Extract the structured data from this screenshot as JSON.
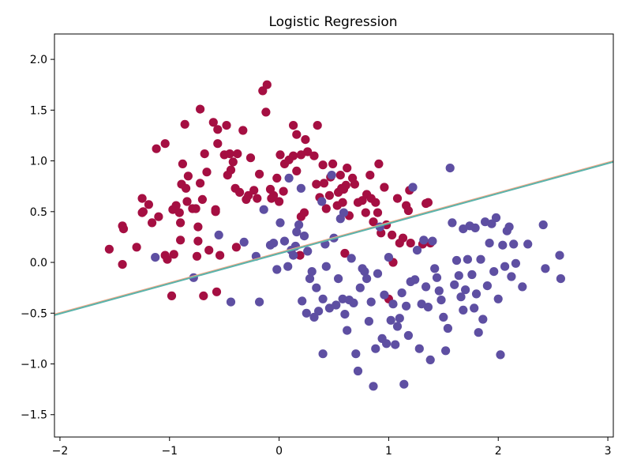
{
  "chart_data": {
    "type": "scatter",
    "title": "Logistic Regression",
    "xlabel": "",
    "ylabel": "",
    "xlim": [
      -2.05,
      3.05
    ],
    "ylim": [
      -1.72,
      2.25
    ],
    "x_ticks": [
      "−2",
      "−1",
      "0",
      "1",
      "2",
      "3"
    ],
    "y_ticks": [
      "−1.5",
      "−1.0",
      "−0.5",
      "0.0",
      "0.5",
      "1.0",
      "1.5",
      "2.0"
    ],
    "grid": false,
    "decision_boundary": {
      "x": [
        -2.05,
        3.05
      ],
      "y": [
        -0.52,
        0.99
      ],
      "colors": [
        "#f4a582",
        "#5ab4ac"
      ]
    },
    "series": [
      {
        "color": "#a50f42",
        "points": [
          [
            -1.55,
            0.13
          ],
          [
            -1.43,
            -0.02
          ],
          [
            -1.43,
            0.36
          ],
          [
            -1.42,
            0.33
          ],
          [
            -1.3,
            0.15
          ],
          [
            -1.25,
            0.63
          ],
          [
            -1.25,
            0.49
          ],
          [
            -1.24,
            0.5
          ],
          [
            -1.19,
            0.57
          ],
          [
            -1.16,
            0.39
          ],
          [
            -1.12,
            1.12
          ],
          [
            -1.1,
            0.45
          ],
          [
            -1.04,
            1.17
          ],
          [
            -1.04,
            0.07
          ],
          [
            -1.02,
            0.03
          ],
          [
            -0.98,
            -0.33
          ],
          [
            -0.97,
            0.52
          ],
          [
            -0.96,
            0.08
          ],
          [
            -0.94,
            0.56
          ],
          [
            -0.91,
            0.49
          ],
          [
            -0.9,
            0.22
          ],
          [
            -0.9,
            0.39
          ],
          [
            -0.89,
            0.77
          ],
          [
            -0.88,
            0.97
          ],
          [
            -0.86,
            1.36
          ],
          [
            -0.85,
            0.73
          ],
          [
            -0.84,
            0.6
          ],
          [
            -0.83,
            0.85
          ],
          [
            -0.79,
            0.53
          ],
          [
            -0.76,
            0.53
          ],
          [
            -0.75,
            0.06
          ],
          [
            -0.74,
            0.35
          ],
          [
            -0.74,
            0.21
          ],
          [
            -0.72,
            0.78
          ],
          [
            -0.72,
            1.51
          ],
          [
            -0.69,
            -0.33
          ],
          [
            -0.7,
            0.62
          ],
          [
            -0.68,
            1.07
          ],
          [
            -0.66,
            0.89
          ],
          [
            -0.64,
            0.12
          ],
          [
            -0.6,
            1.38
          ],
          [
            -0.58,
            0.5
          ],
          [
            -0.58,
            0.52
          ],
          [
            -0.56,
            1.31
          ],
          [
            -0.57,
            -0.29
          ],
          [
            -0.56,
            1.17
          ],
          [
            -0.54,
            0.07
          ],
          [
            -0.5,
            1.06
          ],
          [
            -0.48,
            1.35
          ],
          [
            -0.47,
            0.86
          ],
          [
            -0.45,
            1.07
          ],
          [
            -0.44,
            0.91
          ],
          [
            -0.42,
            0.99
          ],
          [
            -0.4,
            0.73
          ],
          [
            -0.39,
            0.15
          ],
          [
            -0.38,
            1.07
          ],
          [
            -0.36,
            0.69
          ],
          [
            -0.33,
            1.3
          ],
          [
            -0.3,
            0.62
          ],
          [
            -0.28,
            0.66
          ],
          [
            -0.26,
            1.03
          ],
          [
            -0.23,
            0.71
          ],
          [
            -0.2,
            0.63
          ],
          [
            -0.18,
            0.87
          ],
          [
            -0.15,
            1.69
          ],
          [
            -0.12,
            1.48
          ],
          [
            -0.11,
            1.75
          ],
          [
            -0.08,
            0.72
          ],
          [
            -0.07,
            0.63
          ],
          [
            -0.05,
            0.66
          ],
          [
            -0.02,
            0.83
          ],
          [
            0,
            0.6
          ],
          [
            0.01,
            1.06
          ],
          [
            0.04,
            0.7
          ],
          [
            0.05,
            0.97
          ],
          [
            0.09,
            1.01
          ],
          [
            0.13,
            1.35
          ],
          [
            0.13,
            1.05
          ],
          [
            0.16,
            0.9
          ],
          [
            0.16,
            1.26
          ],
          [
            0.19,
            0.07
          ],
          [
            0.2,
            0.45
          ],
          [
            0.2,
            1.06
          ],
          [
            0.23,
            0.49
          ],
          [
            0.24,
            1.21
          ],
          [
            0.26,
            1.09
          ],
          [
            0.32,
            1.05
          ],
          [
            0.34,
            0.77
          ],
          [
            0.35,
            1.35
          ],
          [
            0.37,
            0.64
          ],
          [
            0.4,
            0.96
          ],
          [
            0.41,
            0.78
          ],
          [
            0.43,
            0.53
          ],
          [
            0.46,
            0.66
          ],
          [
            0.47,
            0.84
          ],
          [
            0.49,
            0.97
          ],
          [
            0.53,
            0.56
          ],
          [
            0.54,
            0.69
          ],
          [
            0.56,
            0.86
          ],
          [
            0.57,
            0.73
          ],
          [
            0.58,
            0.59
          ],
          [
            0.59,
            0.72
          ],
          [
            0.6,
            0.09
          ],
          [
            0.61,
            0.76
          ],
          [
            0.62,
            0.93
          ],
          [
            0.64,
            0.46
          ],
          [
            0.67,
            0.83
          ],
          [
            0.69,
            0.77
          ],
          [
            0.72,
            0.59
          ],
          [
            0.76,
            0.61
          ],
          [
            0.79,
            0.49
          ],
          [
            0.8,
            0.67
          ],
          [
            0.83,
            0.86
          ],
          [
            0.84,
            0.63
          ],
          [
            0.86,
            0.4
          ],
          [
            0.88,
            0.59
          ],
          [
            0.9,
            0.49
          ],
          [
            0.91,
            0.97
          ],
          [
            0.93,
            0.29
          ],
          [
            0.96,
            0.74
          ],
          [
            0.98,
            0.37
          ],
          [
            1.0,
            -0.36
          ],
          [
            1.03,
            0.27
          ],
          [
            1.04,
            0.0
          ],
          [
            1.08,
            0.63
          ],
          [
            1.1,
            0.19
          ],
          [
            1.13,
            0.24
          ],
          [
            1.16,
            0.56
          ],
          [
            1.19,
            0.71
          ],
          [
            1.2,
            0.19
          ],
          [
            1.31,
            0.18
          ],
          [
            1.34,
            0.58
          ],
          [
            1.36,
            0.59
          ],
          [
            1.38,
            0.19
          ],
          [
            1.18,
            0.51
          ]
        ]
      },
      {
        "color": "#5e4fa2",
        "points": [
          [
            -1.13,
            0.05
          ],
          [
            -0.78,
            -0.15
          ],
          [
            -0.55,
            0.27
          ],
          [
            -0.44,
            -0.39
          ],
          [
            -0.32,
            0.2
          ],
          [
            -0.21,
            0.06
          ],
          [
            -0.18,
            -0.39
          ],
          [
            -0.14,
            0.52
          ],
          [
            -0.08,
            0.17
          ],
          [
            -0.05,
            0.19
          ],
          [
            -0.02,
            -0.07
          ],
          [
            0.01,
            0.39
          ],
          [
            0.05,
            0.21
          ],
          [
            0.08,
            -0.04
          ],
          [
            0.09,
            0.83
          ],
          [
            0.11,
            0.12
          ],
          [
            0.13,
            0.07
          ],
          [
            0.15,
            0.16
          ],
          [
            0.16,
            0.3
          ],
          [
            0.18,
            0.37
          ],
          [
            0.2,
            0.73
          ],
          [
            0.21,
            -0.38
          ],
          [
            0.23,
            0.26
          ],
          [
            0.25,
            -0.5
          ],
          [
            0.26,
            0.11
          ],
          [
            0.28,
            -0.16
          ],
          [
            0.3,
            -0.09
          ],
          [
            0.32,
            -0.54
          ],
          [
            0.34,
            -0.25
          ],
          [
            0.36,
            -0.48
          ],
          [
            0.39,
            0.6
          ],
          [
            0.4,
            -0.9
          ],
          [
            0.4,
            -0.36
          ],
          [
            0.42,
            0.18
          ],
          [
            0.43,
            -0.04
          ],
          [
            0.46,
            -0.45
          ],
          [
            0.48,
            0.86
          ],
          [
            0.5,
            0.24
          ],
          [
            0.52,
            -0.42
          ],
          [
            0.54,
            -0.16
          ],
          [
            0.56,
            0.43
          ],
          [
            0.58,
            -0.36
          ],
          [
            0.59,
            0.49
          ],
          [
            0.6,
            -0.51
          ],
          [
            0.62,
            -0.67
          ],
          [
            0.64,
            -0.37
          ],
          [
            0.66,
            0.04
          ],
          [
            0.68,
            -0.4
          ],
          [
            0.7,
            -0.9
          ],
          [
            0.72,
            -1.07
          ],
          [
            0.74,
            -0.25
          ],
          [
            0.76,
            -0.06
          ],
          [
            0.78,
            -0.09
          ],
          [
            0.8,
            -0.16
          ],
          [
            0.82,
            -0.58
          ],
          [
            0.84,
            -0.39
          ],
          [
            0.86,
            -1.22
          ],
          [
            0.88,
            -0.85
          ],
          [
            0.9,
            -0.11
          ],
          [
            0.92,
            0.35
          ],
          [
            0.94,
            -0.75
          ],
          [
            0.96,
            -0.32
          ],
          [
            0.98,
            -0.8
          ],
          [
            1.0,
            0.05
          ],
          [
            1.02,
            -0.57
          ],
          [
            1.04,
            -0.41
          ],
          [
            1.06,
            -0.81
          ],
          [
            1.08,
            -0.63
          ],
          [
            1.1,
            -0.55
          ],
          [
            1.12,
            -0.3
          ],
          [
            1.14,
            -1.2
          ],
          [
            1.16,
            -0.43
          ],
          [
            1.18,
            -0.72
          ],
          [
            1.2,
            -0.19
          ],
          [
            1.22,
            0.74
          ],
          [
            1.24,
            -0.17
          ],
          [
            1.26,
            0.12
          ],
          [
            1.28,
            -0.85
          ],
          [
            1.3,
            -0.41
          ],
          [
            1.32,
            0.22
          ],
          [
            1.34,
            -0.24
          ],
          [
            1.36,
            -0.44
          ],
          [
            1.38,
            -0.96
          ],
          [
            1.4,
            0.21
          ],
          [
            1.42,
            -0.06
          ],
          [
            1.44,
            -0.15
          ],
          [
            1.46,
            -0.28
          ],
          [
            1.48,
            -0.37
          ],
          [
            1.5,
            -0.54
          ],
          [
            1.52,
            -0.87
          ],
          [
            1.54,
            -0.65
          ],
          [
            1.56,
            0.93
          ],
          [
            1.58,
            0.39
          ],
          [
            1.6,
            -0.22
          ],
          [
            1.62,
            0.02
          ],
          [
            1.64,
            -0.13
          ],
          [
            1.66,
            -0.34
          ],
          [
            1.68,
            -0.47
          ],
          [
            1.7,
            -0.27
          ],
          [
            1.72,
            0.03
          ],
          [
            1.74,
            0.36
          ],
          [
            1.76,
            -0.12
          ],
          [
            1.78,
            -0.45
          ],
          [
            1.8,
            -0.31
          ],
          [
            1.82,
            -0.69
          ],
          [
            1.84,
            0.03
          ],
          [
            1.86,
            -0.56
          ],
          [
            1.88,
            0.4
          ],
          [
            1.9,
            -0.23
          ],
          [
            1.92,
            0.19
          ],
          [
            1.94,
            0.38
          ],
          [
            1.96,
            -0.09
          ],
          [
            1.98,
            0.44
          ],
          [
            2.0,
            -0.36
          ],
          [
            2.02,
            -0.91
          ],
          [
            2.04,
            0.17
          ],
          [
            2.06,
            -0.04
          ],
          [
            2.08,
            0.31
          ],
          [
            2.1,
            0.35
          ],
          [
            2.12,
            -0.14
          ],
          [
            2.14,
            0.18
          ],
          [
            2.16,
            -0.01
          ],
          [
            2.22,
            -0.24
          ],
          [
            2.27,
            0.18
          ],
          [
            2.41,
            0.37
          ],
          [
            2.43,
            -0.06
          ],
          [
            2.56,
            0.07
          ],
          [
            2.57,
            -0.16
          ],
          [
            1.68,
            0.33
          ],
          [
            1.79,
            0.34
          ]
        ]
      }
    ]
  }
}
